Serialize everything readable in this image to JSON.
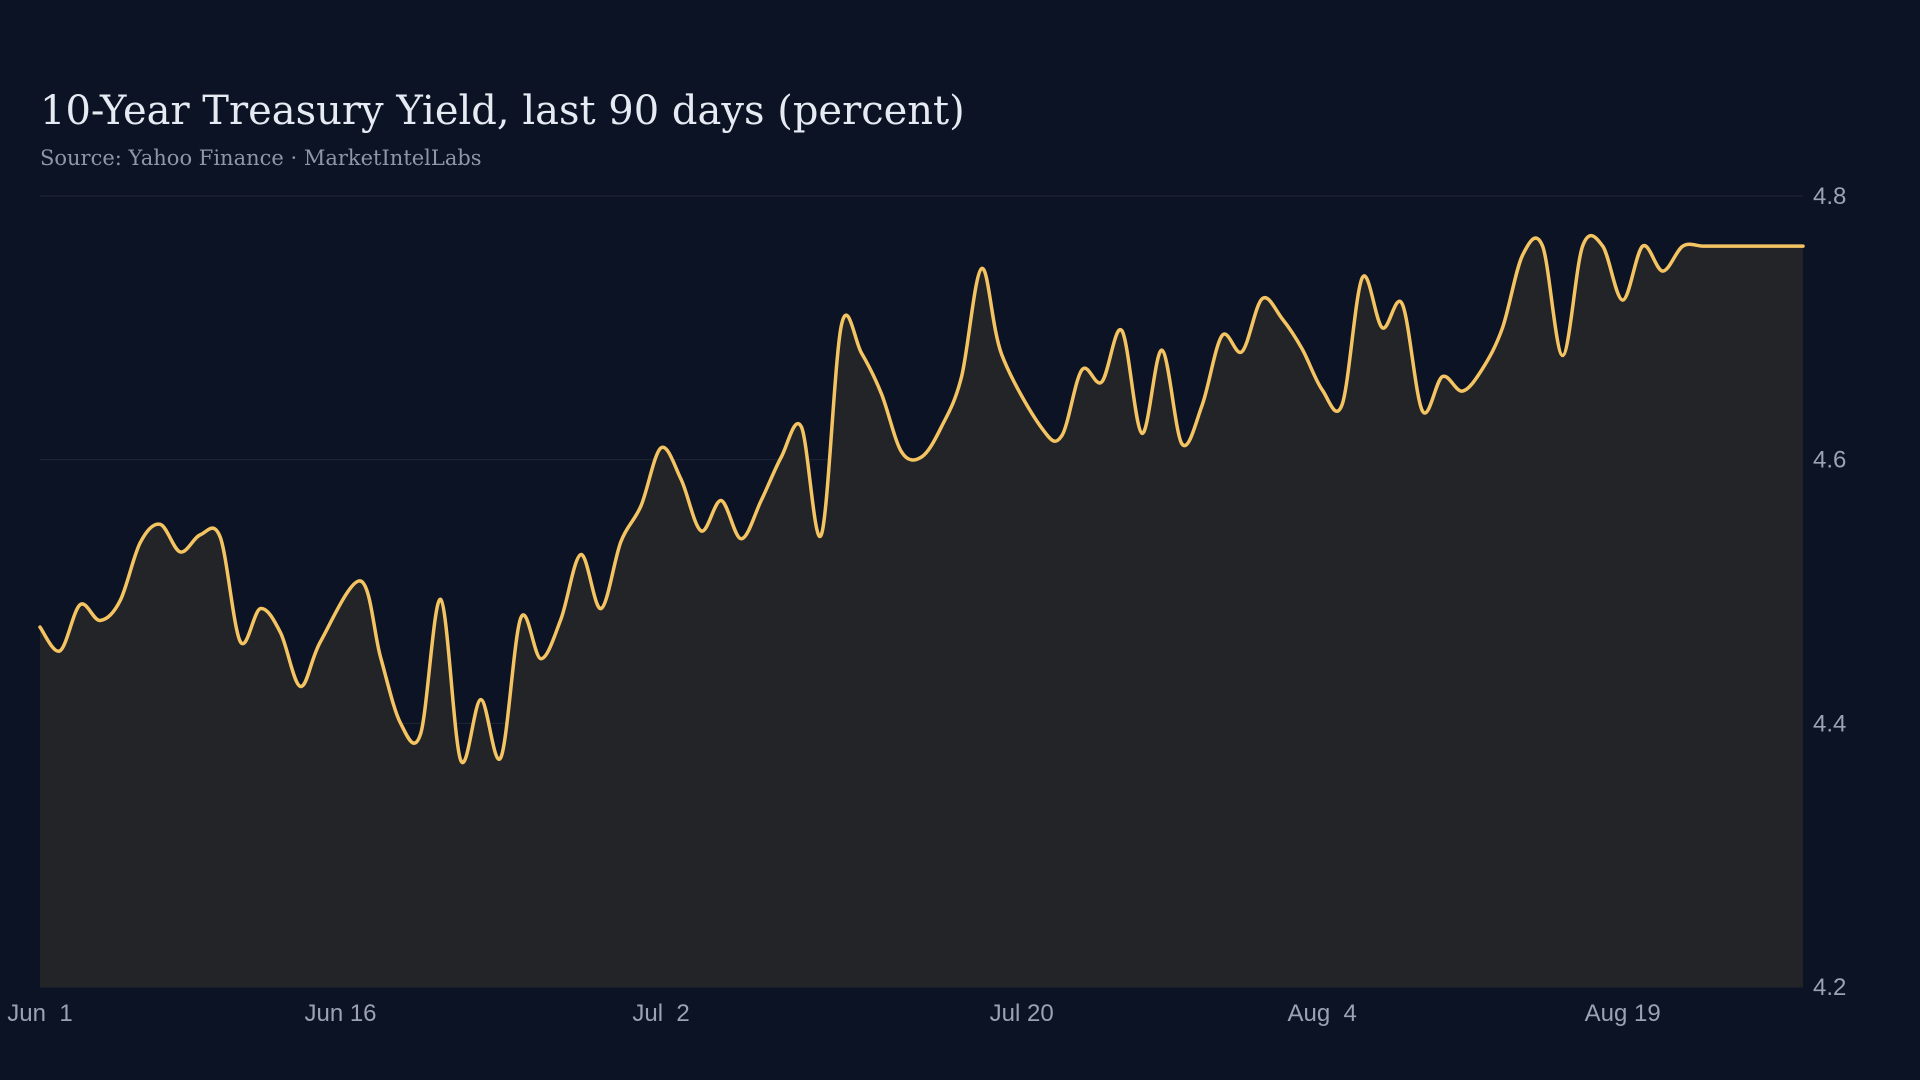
{
  "chart_data": {
    "type": "area",
    "title": "10-Year Treasury Yield, last 90 days (percent)",
    "subtitle": "Source: Yahoo Finance · MarketIntelLabs",
    "xlabel": "",
    "ylabel": "",
    "ylim": [
      4.2,
      4.8
    ],
    "yticks": [
      4.2,
      4.4,
      4.6,
      4.8
    ],
    "ytick_labels": [
      "4.2",
      "4.4",
      "4.6",
      "4.8"
    ],
    "xticks": [
      "2024-06-01",
      "2024-06-16",
      "2024-07-02",
      "2024-07-20",
      "2024-08-04",
      "2024-08-19"
    ],
    "xtick_labels": [
      "Jun  1",
      "Jun 16",
      "Jul  2",
      "Jul 20",
      "Aug  4",
      "Aug 19"
    ],
    "grid": true,
    "colors": {
      "background": "#0c1324",
      "line": "#f5c462",
      "area": "#222427",
      "grid": "#1f2634",
      "tick_text": "#9aa2b3",
      "title": "#e6eaf2",
      "subtitle": "#8e96a8"
    },
    "series": [
      {
        "x": [
          "2024-06-01",
          "2024-06-03",
          "2024-06-04",
          "2024-06-06",
          "2024-06-07",
          "2024-06-09",
          "2024-06-11",
          "2024-06-12",
          "2024-06-14",
          "2024-06-15",
          "2024-06-17",
          "2024-06-19",
          "2024-06-20",
          "2024-06-22",
          "2024-06-23",
          "2024-06-25",
          "2024-06-27",
          "2024-06-28",
          "2024-06-30",
          "2024-07-02",
          "2024-07-03",
          "2024-07-05",
          "2024-07-06",
          "2024-07-08",
          "2024-07-09",
          "2024-07-11",
          "2024-07-13",
          "2024-07-14",
          "2024-07-16",
          "2024-07-17",
          "2024-07-19",
          "2024-07-21",
          "2024-07-22",
          "2024-07-24",
          "2024-07-25",
          "2024-07-27",
          "2024-07-29",
          "2024-07-30",
          "2024-08-01",
          "2024-08-02",
          "2024-08-04",
          "2024-08-06",
          "2024-08-07",
          "2024-08-09",
          "2024-08-10",
          "2024-08-12",
          "2024-08-14",
          "2024-08-15",
          "2024-08-17",
          "2024-08-18",
          "2024-08-20",
          "2024-08-22",
          "2024-08-23",
          "2024-08-25",
          "2024-08-27",
          "2024-08-28",
          "2024-06-02",
          "2024-06-05",
          "2024-06-08",
          "2024-06-10",
          "2024-06-13",
          "2024-06-18",
          "2024-06-21",
          "2024-06-24",
          "2024-06-26",
          "2024-06-29",
          "2024-07-01",
          "2024-07-04",
          "2024-07-07",
          "2024-07-10",
          "2024-07-12",
          "2024-07-15",
          "2024-07-18",
          "2024-07-23",
          "2024-07-26",
          "2024-07-28",
          "2024-07-31",
          "2024-08-03",
          "2024-08-05",
          "2024-08-08",
          "2024-08-11",
          "2024-08-13",
          "2024-08-16",
          "2024-08-19",
          "2024-08-21",
          "2024-08-24",
          "2024-08-26"
        ],
        "values": [
          4.473,
          4.49,
          4.478,
          4.537,
          4.551,
          4.543,
          4.462,
          4.487,
          4.428,
          4.462,
          4.508,
          4.4,
          4.392,
          4.372,
          4.418,
          4.48,
          4.479,
          4.528,
          4.538,
          4.609,
          4.585,
          4.569,
          4.54,
          4.602,
          4.625,
          4.702,
          4.65,
          4.606,
          4.625,
          4.663,
          4.68,
          4.624,
          4.618,
          4.659,
          4.698,
          4.683,
          4.641,
          4.694,
          4.722,
          4.707,
          4.653,
          4.738,
          4.7,
          4.637,
          4.663,
          4.669,
          4.755,
          4.762,
          4.762,
          4.762,
          4.762,
          4.762,
          4.762,
          4.762,
          4.762,
          4.762,
          4.455,
          4.493,
          4.53,
          4.541,
          4.469,
          4.45,
          4.494,
          4.374,
          4.449,
          4.487,
          4.565,
          4.546,
          4.569,
          4.543,
          4.681,
          4.602,
          4.745,
          4.668,
          4.62,
          4.612,
          4.682,
          4.684,
          4.642,
          4.718,
          4.652,
          4.7,
          4.679,
          4.721,
          4.743,
          4.762,
          4.762
        ]
      }
    ]
  }
}
